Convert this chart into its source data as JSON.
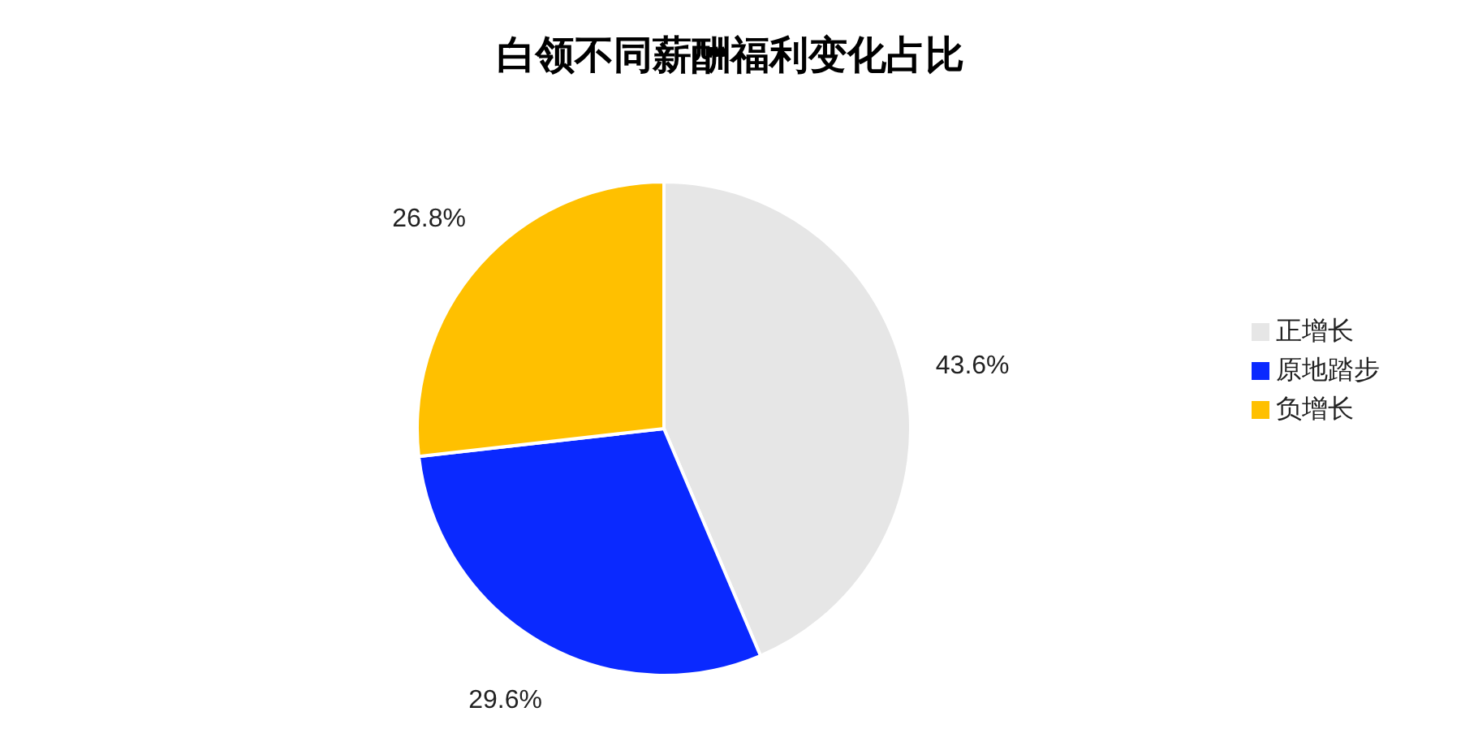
{
  "chart_data": {
    "type": "pie",
    "title": "白领不同薪酬福利变化占比",
    "categories": [
      "正增长",
      "原地踏步",
      "负增长"
    ],
    "values": [
      43.6,
      29.6,
      26.8
    ],
    "value_labels": [
      "43.6%",
      "29.6%",
      "26.8%"
    ],
    "colors": [
      "#e6e6e6",
      "#0a29ff",
      "#ffc000"
    ],
    "legend": "right"
  }
}
